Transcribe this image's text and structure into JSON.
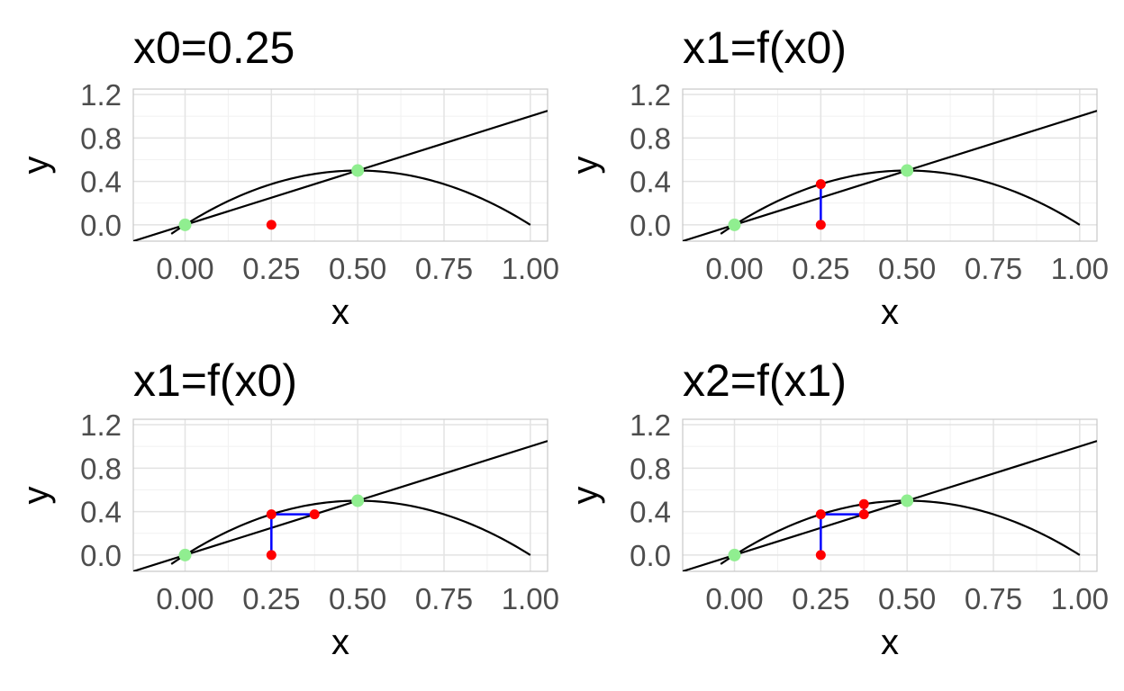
{
  "colors": {
    "grid_major": "#e3e3e3",
    "grid_minor": "#f1f1f1",
    "panel_border": "#c8c8c8",
    "curve": "#000000",
    "cobweb": "#0000ff",
    "iterate_point": "#ff0000",
    "fixed_point": "#90ee90",
    "tick_text": "#4d4d4d"
  },
  "chart_data": [
    {
      "type": "line",
      "title": "x0=0.25",
      "xlabel": "x",
      "ylabel": "y",
      "xlim": [
        -0.15,
        1.05
      ],
      "ylim": [
        -0.15,
        1.25
      ],
      "xticks": [
        0.0,
        0.25,
        0.5,
        0.75,
        1.0
      ],
      "xtick_labels": [
        "0.00",
        "0.25",
        "0.50",
        "0.75",
        "1.00"
      ],
      "yticks": [
        0.0,
        0.4,
        0.8,
        1.2
      ],
      "ytick_labels": [
        "0.0",
        "0.4",
        "0.8",
        "1.2"
      ],
      "grid": true,
      "map": "f(x) = 2x(1 - x)",
      "diagonal": "y = x",
      "fixed_points": [
        [
          0,
          0
        ],
        [
          0.5,
          0.5
        ]
      ],
      "cobweb": [],
      "points": [
        [
          0.25,
          0
        ]
      ]
    },
    {
      "type": "line",
      "title": "x1=f(x0)",
      "xlabel": "x",
      "ylabel": "y",
      "xlim": [
        -0.15,
        1.05
      ],
      "ylim": [
        -0.15,
        1.25
      ],
      "xticks": [
        0.0,
        0.25,
        0.5,
        0.75,
        1.0
      ],
      "xtick_labels": [
        "0.00",
        "0.25",
        "0.50",
        "0.75",
        "1.00"
      ],
      "yticks": [
        0.0,
        0.4,
        0.8,
        1.2
      ],
      "ytick_labels": [
        "0.0",
        "0.4",
        "0.8",
        "1.2"
      ],
      "grid": true,
      "map": "f(x) = 2x(1 - x)",
      "diagonal": "y = x",
      "fixed_points": [
        [
          0,
          0
        ],
        [
          0.5,
          0.5
        ]
      ],
      "cobweb": [
        [
          0.25,
          0
        ],
        [
          0.25,
          0.375
        ]
      ],
      "points": [
        [
          0.25,
          0
        ],
        [
          0.25,
          0.375
        ]
      ]
    },
    {
      "type": "line",
      "title": "x1=f(x0)",
      "xlabel": "x",
      "ylabel": "y",
      "xlim": [
        -0.15,
        1.05
      ],
      "ylim": [
        -0.15,
        1.25
      ],
      "xticks": [
        0.0,
        0.25,
        0.5,
        0.75,
        1.0
      ],
      "xtick_labels": [
        "0.00",
        "0.25",
        "0.50",
        "0.75",
        "1.00"
      ],
      "yticks": [
        0.0,
        0.4,
        0.8,
        1.2
      ],
      "ytick_labels": [
        "0.0",
        "0.4",
        "0.8",
        "1.2"
      ],
      "grid": true,
      "map": "f(x) = 2x(1 - x)",
      "diagonal": "y = x",
      "fixed_points": [
        [
          0,
          0
        ],
        [
          0.5,
          0.5
        ]
      ],
      "cobweb": [
        [
          0.25,
          0
        ],
        [
          0.25,
          0.375
        ],
        [
          0.375,
          0.375
        ]
      ],
      "points": [
        [
          0.25,
          0
        ],
        [
          0.25,
          0.375
        ],
        [
          0.375,
          0.375
        ]
      ]
    },
    {
      "type": "line",
      "title": "x2=f(x1)",
      "xlabel": "x",
      "ylabel": "y",
      "xlim": [
        -0.15,
        1.05
      ],
      "ylim": [
        -0.15,
        1.25
      ],
      "xticks": [
        0.0,
        0.25,
        0.5,
        0.75,
        1.0
      ],
      "xtick_labels": [
        "0.00",
        "0.25",
        "0.50",
        "0.75",
        "1.00"
      ],
      "yticks": [
        0.0,
        0.4,
        0.8,
        1.2
      ],
      "ytick_labels": [
        "0.0",
        "0.4",
        "0.8",
        "1.2"
      ],
      "grid": true,
      "map": "f(x) = 2x(1 - x)",
      "diagonal": "y = x",
      "fixed_points": [
        [
          0,
          0
        ],
        [
          0.5,
          0.5
        ]
      ],
      "cobweb": [
        [
          0.25,
          0
        ],
        [
          0.25,
          0.375
        ],
        [
          0.375,
          0.375
        ],
        [
          0.375,
          0.46875
        ]
      ],
      "points": [
        [
          0.25,
          0
        ],
        [
          0.25,
          0.375
        ],
        [
          0.375,
          0.375
        ],
        [
          0.375,
          0.46875
        ]
      ]
    }
  ]
}
